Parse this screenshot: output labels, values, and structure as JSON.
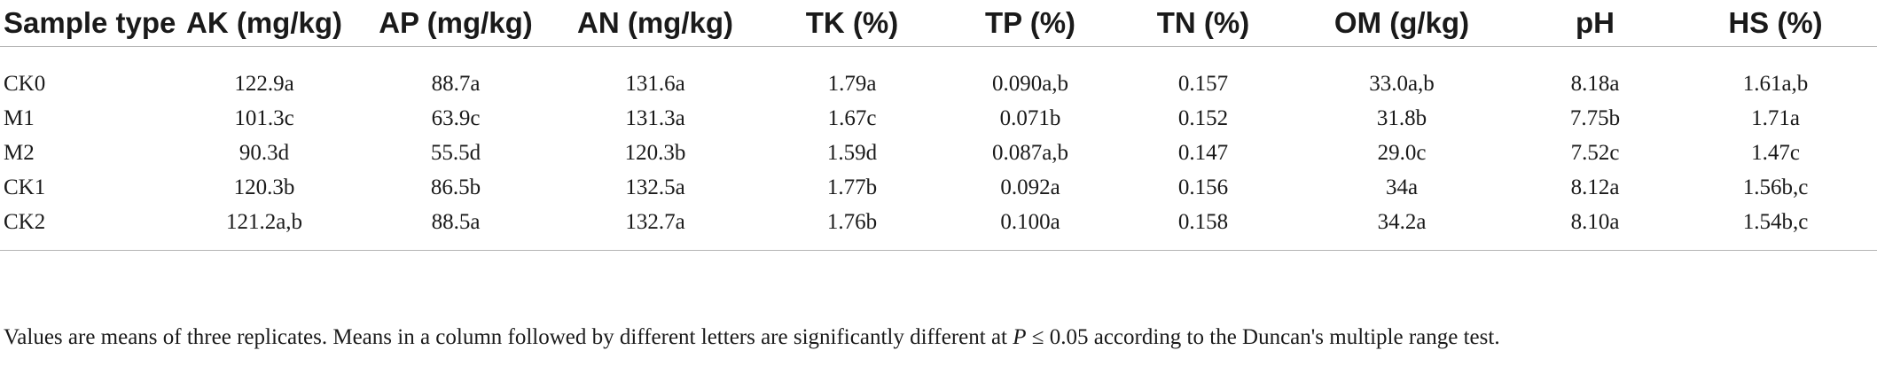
{
  "table": {
    "headers": [
      "Sample type",
      "AK (mg/kg)",
      "AP (mg/kg)",
      "AN (mg/kg)",
      "TK (%)",
      "TP (%)",
      "TN (%)",
      "OM (g/kg)",
      "pH",
      "HS (%)"
    ],
    "rows": [
      [
        "CK0",
        "122.9a",
        "88.7a",
        "131.6a",
        "1.79a",
        "0.090a,b",
        "0.157",
        "33.0a,b",
        "8.18a",
        "1.61a,b"
      ],
      [
        "M1",
        "101.3c",
        "63.9c",
        "131.3a",
        "1.67c",
        "0.071b",
        "0.152",
        "31.8b",
        "7.75b",
        "1.71a"
      ],
      [
        "M2",
        "90.3d",
        "55.5d",
        "120.3b",
        "1.59d",
        "0.087a,b",
        "0.147",
        "29.0c",
        "7.52c",
        "1.47c"
      ],
      [
        "CK1",
        "120.3b",
        "86.5b",
        "132.5a",
        "1.77b",
        "0.092a",
        "0.156",
        "34a",
        "8.12a",
        "1.56b,c"
      ],
      [
        "CK2",
        "121.2a,b",
        "88.5a",
        "132.7a",
        "1.76b",
        "0.100a",
        "0.158",
        "34.2a",
        "8.10a",
        "1.54b,c"
      ]
    ]
  },
  "footnote": {
    "before": "Values are means of three replicates. Means in a column followed by different letters are significantly different at ",
    "italic": "P",
    "after": " ≤ 0.05 according to the Duncan's multiple range test."
  }
}
